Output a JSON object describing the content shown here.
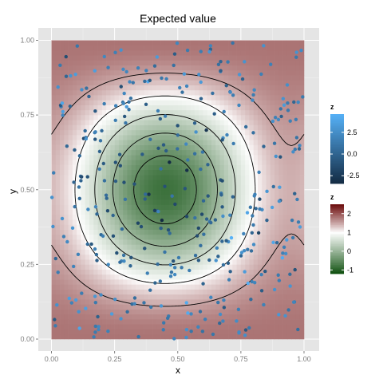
{
  "chart_data": {
    "type": "heatmap",
    "title": "Expected value",
    "xlabel": "x",
    "ylabel": "y",
    "xlim": [
      0,
      1
    ],
    "ylim": [
      0,
      1
    ],
    "x_ticks": [
      "0.00",
      "0.25",
      "0.50",
      "0.75",
      "1.00"
    ],
    "y_ticks": [
      "0.00",
      "0.25",
      "0.50",
      "0.75",
      "1.00"
    ],
    "grid": true,
    "background": "#e5e5e5",
    "surface": {
      "description_formula_note": "",
      "fill_range": [
        -1.2,
        2.5
      ],
      "contour_levels": [
        -0.5,
        0,
        0.5,
        1,
        1.5,
        2
      ]
    },
    "legends": [
      {
        "title": "z",
        "kind": "points",
        "ticks": [
          "2.5",
          "0.0",
          "-2.5"
        ],
        "tick_values": [
          2.5,
          0.0,
          -2.5
        ],
        "range": [
          -3.4,
          4.6
        ],
        "colors": [
          "#132b43",
          "#56b1f7"
        ]
      },
      {
        "title": "z",
        "kind": "fill",
        "ticks": [
          "2",
          "1",
          "0",
          "-1"
        ],
        "tick_values": [
          2,
          1,
          0,
          -1
        ],
        "range": [
          -1.2,
          2.5
        ],
        "colors": [
          "#0b4d0b",
          "#ffffff",
          "#6b0a0a"
        ]
      }
    ],
    "point_count": 400,
    "point_color_range": [
      "#132b43",
      "#56b1f7"
    ]
  }
}
